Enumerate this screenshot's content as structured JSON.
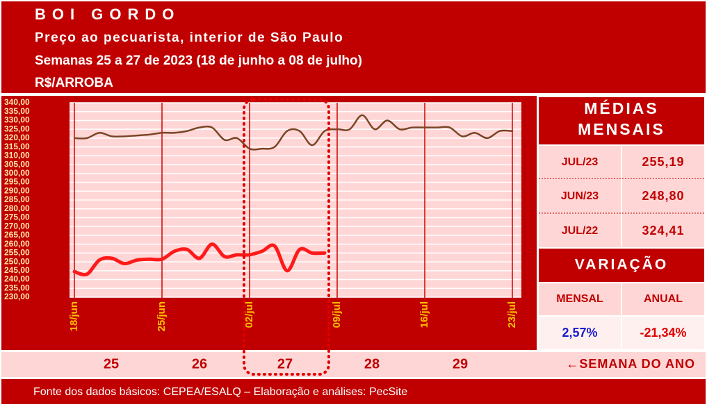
{
  "header": {
    "title": "BOI GORDO",
    "subtitle": "Preço ao pecuarista, interior de São Paulo",
    "period": "Semanas 25 a 27 de 2023 (18 de junho a 08 de julho)",
    "unit": "R$/ARROBA"
  },
  "chart_data": {
    "type": "line",
    "categories": [
      "18/jun",
      null,
      null,
      null,
      null,
      null,
      null,
      "25/jun",
      null,
      null,
      null,
      null,
      null,
      null,
      "02/jul",
      null,
      null,
      null,
      null,
      null,
      null,
      "09/jul",
      null,
      null,
      null,
      null,
      null,
      null,
      "16/jul",
      null,
      null,
      null,
      null,
      null,
      null,
      "23/jul"
    ],
    "series": [
      {
        "color": "#7a4526",
        "values": [
          320,
          320,
          323,
          321,
          321,
          321.5,
          322,
          323,
          323,
          324,
          326,
          326,
          319,
          320,
          314,
          314,
          315,
          324,
          324,
          316,
          324,
          325,
          325,
          333,
          325,
          330,
          325,
          326,
          326,
          326,
          326,
          321,
          323,
          320,
          324,
          324
        ]
      },
      {
        "color": "#ff1a1a",
        "values": [
          244.5,
          243,
          251,
          252,
          249,
          251,
          251.5,
          251.5,
          256,
          257,
          252,
          260,
          253,
          254,
          254,
          256,
          259,
          245,
          257,
          255,
          255,
          null,
          null,
          null,
          null,
          null,
          null,
          null,
          null,
          null,
          null,
          null,
          null,
          null,
          null,
          null
        ]
      }
    ],
    "ylim": [
      230,
      340
    ],
    "yticks": [
      {
        "value": 230,
        "label": "230,00"
      },
      {
        "value": 235,
        "label": "235,00"
      },
      {
        "value": 240,
        "label": "240,00"
      },
      {
        "value": 245,
        "label": "245,00"
      },
      {
        "value": 250,
        "label": "250,00"
      },
      {
        "value": 255,
        "label": "255,00"
      },
      {
        "value": 260,
        "label": "260,00"
      },
      {
        "value": 265,
        "label": "265,00"
      },
      {
        "value": 270,
        "label": "270,00"
      },
      {
        "value": 275,
        "label": "275,00"
      },
      {
        "value": 280,
        "label": "280,00"
      },
      {
        "value": 285,
        "label": "285,00"
      },
      {
        "value": 290,
        "label": "290,00"
      },
      {
        "value": 295,
        "label": "295,00"
      },
      {
        "value": 300,
        "label": "300,00"
      },
      {
        "value": 305,
        "label": "305,00"
      },
      {
        "value": 310,
        "label": "310,00"
      },
      {
        "value": 315,
        "label": "315,00"
      },
      {
        "value": 320,
        "label": "320,00"
      },
      {
        "value": 325,
        "label": "325,00"
      },
      {
        "value": 330,
        "label": "330,00"
      },
      {
        "value": 335,
        "label": "335,00"
      },
      {
        "value": 340,
        "label": "340,00"
      }
    ],
    "grid": true
  },
  "panel": {
    "title": [
      "MÉDIAS",
      "MENSAIS"
    ],
    "rows": [
      [
        "JUL/23",
        "255,19"
      ],
      [
        "JUN/23",
        "248,80"
      ],
      [
        "JUL/22",
        "324,41"
      ]
    ],
    "variation_title": "VARIAÇÃO",
    "headers": [
      "MENSAL",
      "ANUAL"
    ],
    "values": [
      "2,57%",
      "-21,34%"
    ]
  },
  "weeks": {
    "labels": [
      "25",
      "26",
      "27",
      "28",
      "29"
    ],
    "note": "←SEMANA DO ANO"
  },
  "footer": "Fonte dos dados básicos: CEPEA/ESALQ – Elaboração e análises: PecSite"
}
